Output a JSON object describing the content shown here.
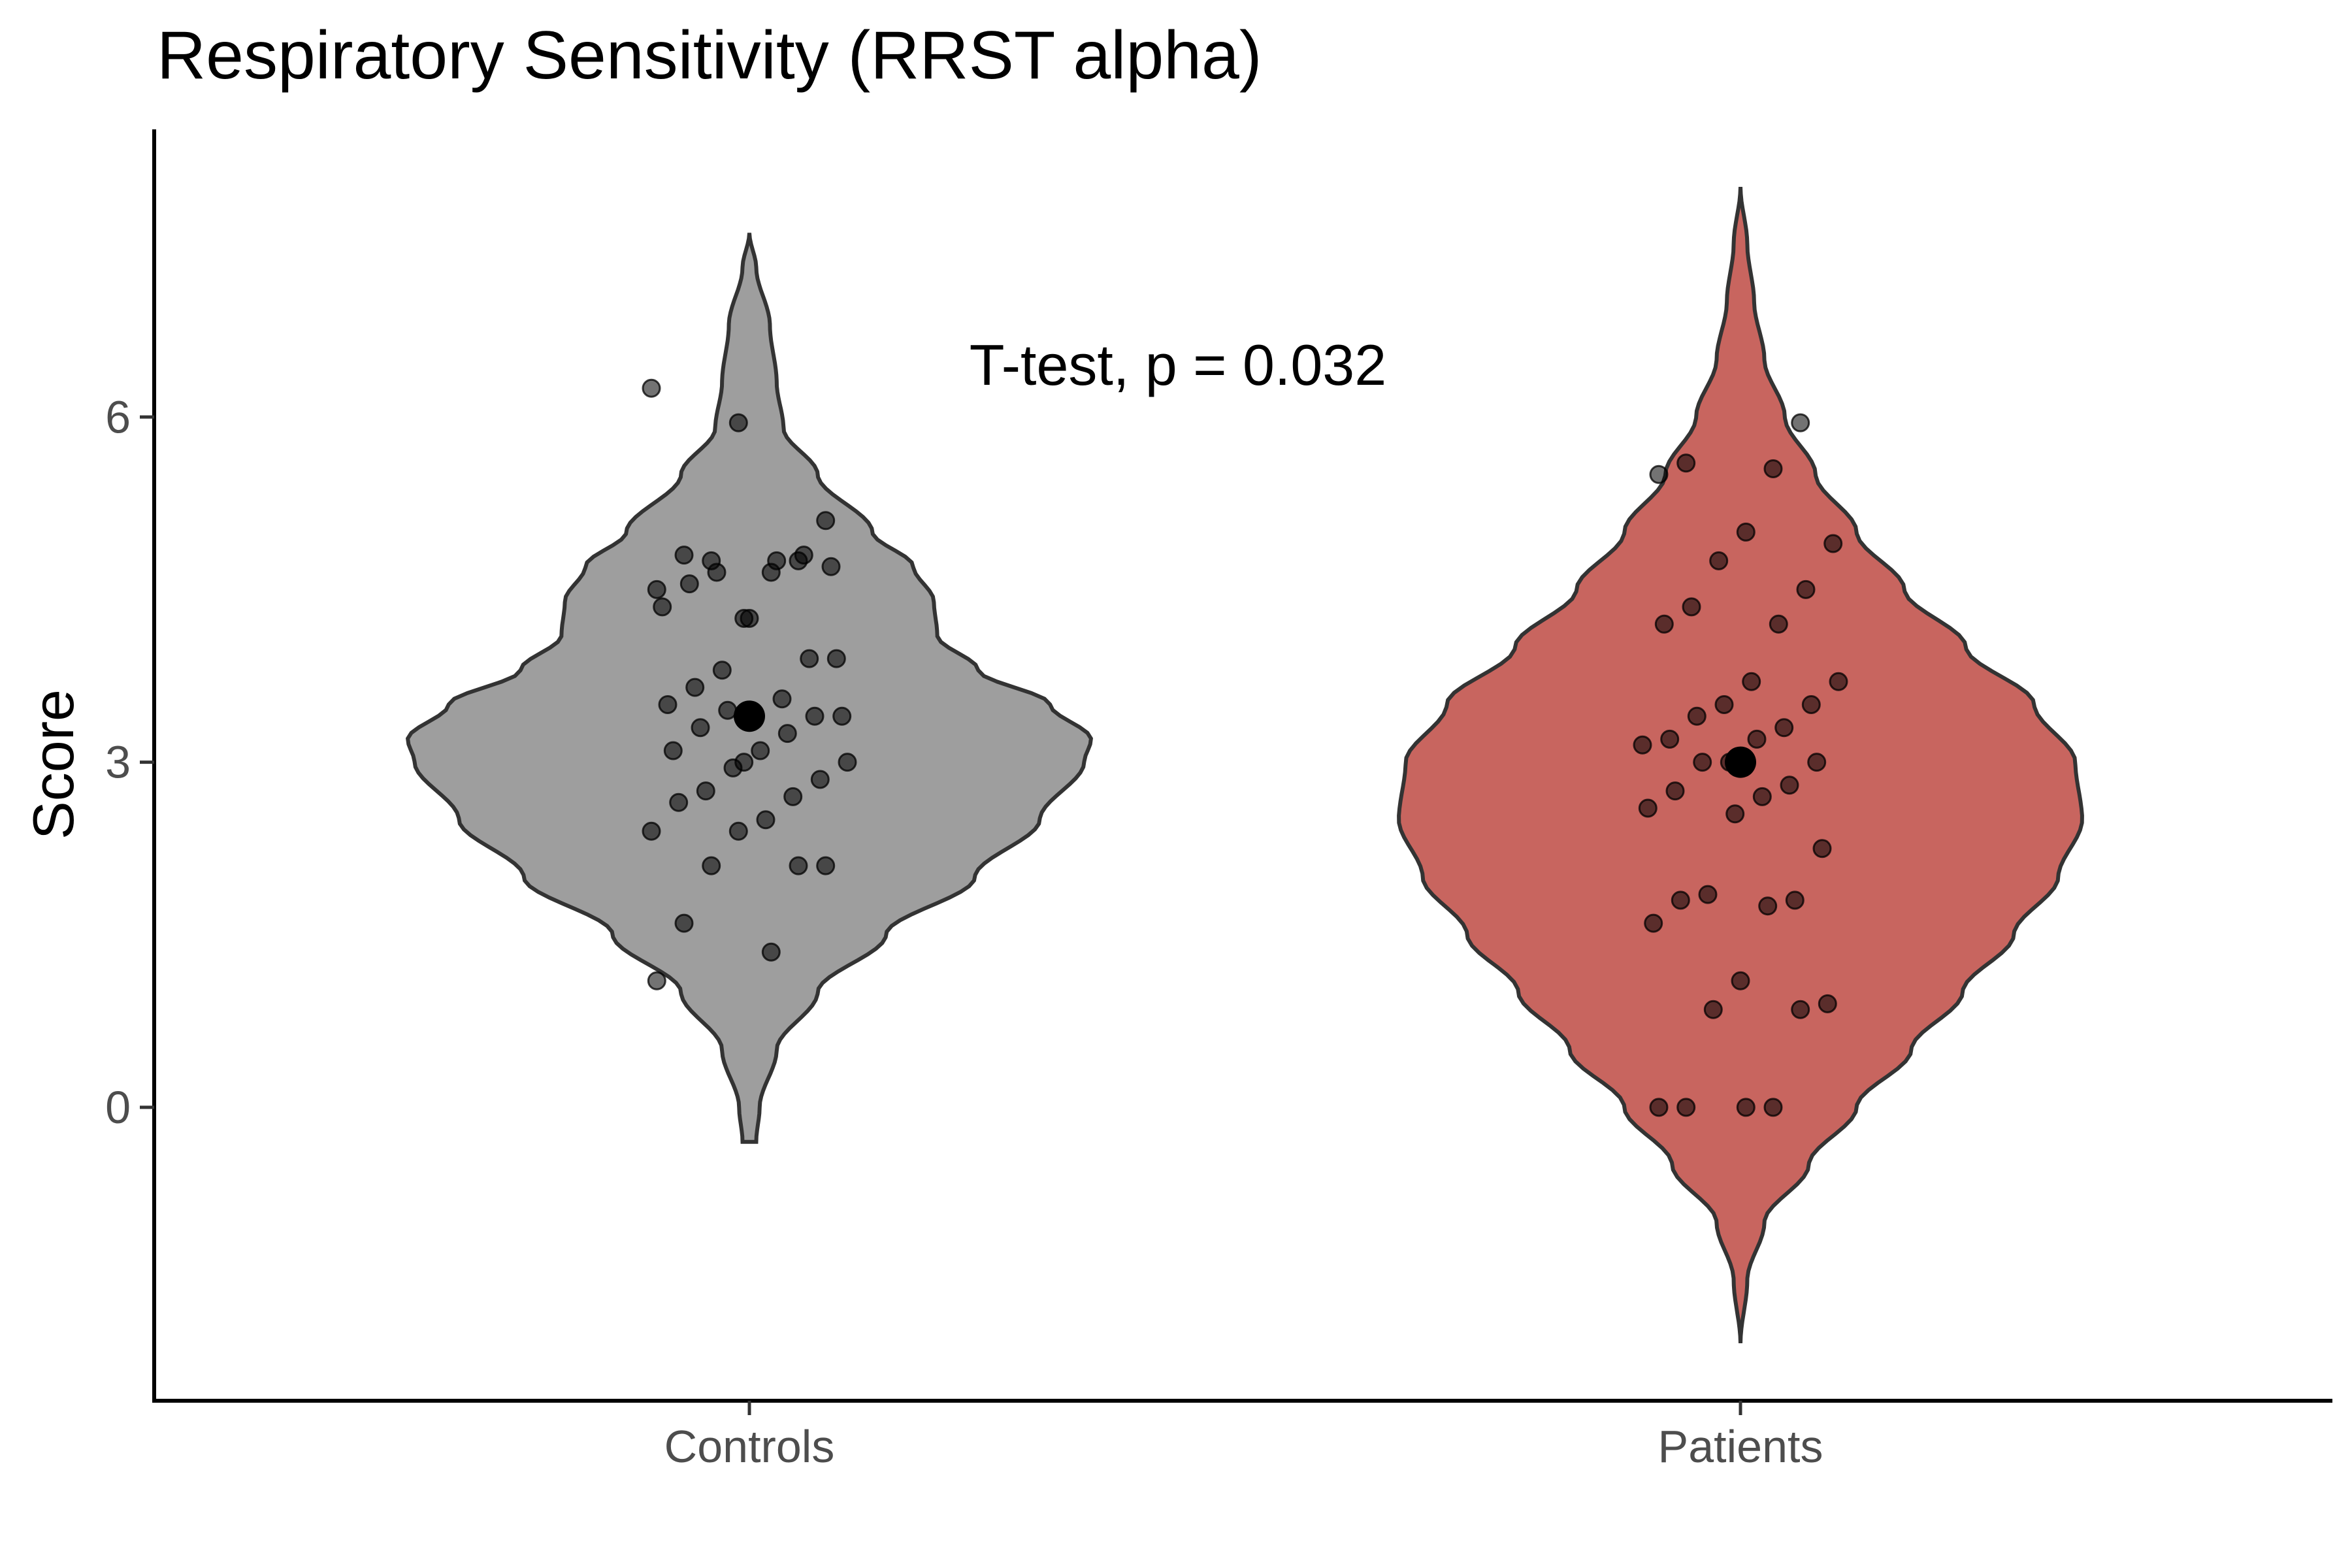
{
  "chart_data": {
    "type": "violin",
    "title": "Respiratory Sensitivity (RRST alpha)",
    "xlabel": "",
    "ylabel": "Score",
    "categories": [
      "Controls",
      "Patients"
    ],
    "ylim": [
      -2.55,
      8.5
    ],
    "yticks": [
      0,
      3,
      6
    ],
    "grid": false,
    "legend": "none",
    "annotation": "T-test, p = 0.032",
    "series": [
      {
        "category": "Controls",
        "color": "#9e9e9e",
        "mean": 3.4,
        "range": [
          -0.3,
          7.6
        ],
        "density": [
          [
            -0.3,
            0.02
          ],
          [
            0.0,
            0.03
          ],
          [
            0.5,
            0.08
          ],
          [
            1.0,
            0.2
          ],
          [
            1.5,
            0.4
          ],
          [
            2.0,
            0.66
          ],
          [
            2.5,
            0.85
          ],
          [
            3.0,
            0.98
          ],
          [
            3.2,
            1.0
          ],
          [
            3.5,
            0.88
          ],
          [
            3.8,
            0.67
          ],
          [
            4.1,
            0.55
          ],
          [
            4.4,
            0.54
          ],
          [
            4.7,
            0.48
          ],
          [
            5.0,
            0.36
          ],
          [
            5.5,
            0.2
          ],
          [
            5.9,
            0.1
          ],
          [
            6.3,
            0.08
          ],
          [
            6.8,
            0.06
          ],
          [
            7.3,
            0.02
          ],
          [
            7.6,
            0.0
          ]
        ],
        "points": [
          6.25,
          5.95,
          5.1,
          4.75,
          4.75,
          4.8,
          4.65,
          4.5,
          4.25,
          4.7,
          4.65,
          4.8,
          4.55,
          4.75,
          4.35,
          4.25,
          3.9,
          3.8,
          3.9,
          3.65,
          3.55,
          3.5,
          3.4,
          3.4,
          3.45,
          3.4,
          3.3,
          3.25,
          3.1,
          3.1,
          3.0,
          2.95,
          2.85,
          2.75,
          2.7,
          2.65,
          2.5,
          2.4,
          2.4,
          2.1,
          2.1,
          2.1,
          1.6,
          1.35,
          1.1,
          3.0
        ]
      },
      {
        "category": "Patients",
        "color": "#c8655f",
        "mean": 3.0,
        "range": [
          -2.05,
          8.0
        ],
        "density": [
          [
            -2.05,
            0.0
          ],
          [
            -1.5,
            0.02
          ],
          [
            -1.0,
            0.07
          ],
          [
            -0.5,
            0.2
          ],
          [
            0.0,
            0.34
          ],
          [
            0.5,
            0.5
          ],
          [
            1.0,
            0.65
          ],
          [
            1.5,
            0.8
          ],
          [
            2.0,
            0.93
          ],
          [
            2.5,
            1.0
          ],
          [
            3.0,
            0.98
          ],
          [
            3.5,
            0.86
          ],
          [
            4.0,
            0.66
          ],
          [
            4.5,
            0.48
          ],
          [
            5.0,
            0.34
          ],
          [
            5.5,
            0.22
          ],
          [
            6.0,
            0.13
          ],
          [
            6.5,
            0.07
          ],
          [
            7.0,
            0.04
          ],
          [
            7.5,
            0.02
          ],
          [
            8.0,
            0.0
          ]
        ],
        "points": [
          5.95,
          5.6,
          5.55,
          5.5,
          5.0,
          4.9,
          4.75,
          4.5,
          4.35,
          4.2,
          4.2,
          3.7,
          3.7,
          3.5,
          3.5,
          3.4,
          3.3,
          3.2,
          3.2,
          3.15,
          3.0,
          3.0,
          3.0,
          2.8,
          2.75,
          2.7,
          2.6,
          2.55,
          2.25,
          1.85,
          1.8,
          1.8,
          1.75,
          1.6,
          1.1,
          0.9,
          0.85,
          0.85,
          0.0,
          0.0,
          0.0,
          0.0
        ]
      }
    ]
  }
}
